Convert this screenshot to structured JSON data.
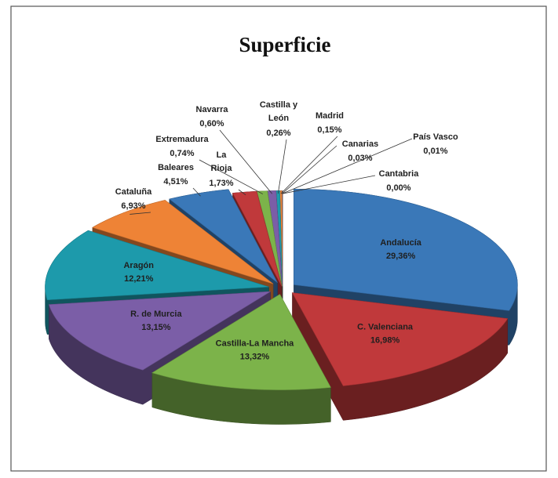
{
  "chart_data": {
    "type": "pie3d",
    "title": "Superficie",
    "categories": [
      "Andalucía",
      "C. Valenciana",
      "Castilla-La Mancha",
      "R. de Murcia",
      "Aragón",
      "Cataluña",
      "Baleares",
      "La Rioja",
      "Extremadura",
      "Navarra",
      "Castilla y León",
      "Madrid",
      "Canarias",
      "País Vasco",
      "Cantabria"
    ],
    "values": [
      29.36,
      16.98,
      13.32,
      13.15,
      12.21,
      6.93,
      4.51,
      1.73,
      0.74,
      0.6,
      0.26,
      0.15,
      0.03,
      0.01,
      0.0
    ],
    "value_labels": [
      "29,36%",
      "16,98%",
      "13,32%",
      "13,15%",
      "12,21%",
      "6,93%",
      "4,51%",
      "1,73%",
      "0,74%",
      "0,60%",
      "0,26%",
      "0,15%",
      "0,03%",
      "0,01%",
      "0,00%"
    ],
    "colors": [
      "#3a78b8",
      "#c0393b",
      "#7cb34a",
      "#7b5ea7",
      "#1d9aab",
      "#ee8336",
      "#3a78b8",
      "#c0393b",
      "#7cb34a",
      "#7b5ea7",
      "#1d9aab",
      "#ee8336",
      "#3a78b8",
      "#c0393b",
      "#7cb34a"
    ]
  }
}
